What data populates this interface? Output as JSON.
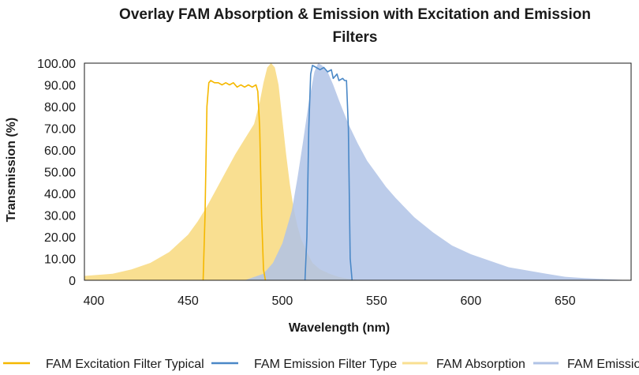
{
  "chart_data": {
    "type": "area",
    "title": "Overlay FAM Absorption & Emission with Excitation and Emission Filters",
    "xlabel": "Wavelength (nm)",
    "ylabel": "Transmission (%)",
    "xlim": [
      395,
      685
    ],
    "ylim": [
      0,
      100
    ],
    "x_ticks": [
      400,
      450,
      500,
      550,
      600,
      650
    ],
    "y_ticks": [
      0,
      10,
      20,
      30,
      40,
      50,
      60,
      70,
      80,
      90,
      100
    ],
    "y_tick_labels": [
      "0",
      "10.00",
      "20.00",
      "30.00",
      "40.00",
      "50.00",
      "60.00",
      "70.00",
      "80.00",
      "90.00",
      "100.00"
    ],
    "grid": false,
    "legend_position": "bottom",
    "series": [
      {
        "name": "FAM Absorption",
        "style": "filled-area",
        "color": "#f9df91",
        "x": [
          395,
          410,
          420,
          430,
          440,
          450,
          455,
          460,
          465,
          470,
          475,
          480,
          485,
          488,
          490,
          492,
          494,
          496,
          498,
          500,
          502,
          504,
          506,
          508,
          510,
          513,
          516,
          520,
          525,
          530,
          535,
          540
        ],
        "y": [
          2,
          3,
          5,
          8,
          13,
          21,
          27,
          34,
          42,
          50,
          58,
          65,
          72,
          82,
          91,
          98,
          100,
          98,
          90,
          74,
          58,
          44,
          33,
          25,
          19,
          13,
          8,
          5,
          3,
          1.5,
          0.7,
          0
        ]
      },
      {
        "name": "FAM Emission",
        "style": "filled-area",
        "color": "#b0c3e6",
        "x": [
          480,
          490,
          495,
          500,
          505,
          508,
          511,
          514,
          517,
          519,
          521,
          524,
          527,
          530,
          535,
          540,
          545,
          550,
          555,
          560,
          570,
          580,
          590,
          600,
          620,
          640,
          650,
          660,
          670,
          685
        ],
        "y": [
          0,
          3,
          8,
          17,
          32,
          47,
          64,
          82,
          96,
          100,
          99,
          96,
          90,
          83,
          72,
          63,
          55,
          49,
          43,
          38,
          29,
          22,
          16,
          12,
          6,
          3,
          1.6,
          1,
          0.6,
          0
        ]
      },
      {
        "name": "FAM Excitation Filter Typical",
        "style": "line",
        "color": "#f5b800",
        "x": [
          458,
          459,
          460,
          461,
          462,
          464,
          466,
          468,
          470,
          472,
          474,
          476,
          478,
          480,
          482,
          484,
          486,
          487,
          488,
          489,
          490,
          491
        ],
        "y": [
          0,
          30,
          80,
          91,
          92,
          91,
          91,
          90,
          91,
          90,
          91,
          89,
          90,
          89,
          90,
          89,
          90,
          87,
          70,
          30,
          5,
          0
        ]
      },
      {
        "name": "FAM Emission Filter Type",
        "style": "line",
        "color": "#4a88c7",
        "x": [
          512,
          513,
          514,
          515,
          516,
          518,
          520,
          522,
          524,
          526,
          527,
          529,
          530,
          532,
          533,
          534,
          535,
          536,
          537
        ],
        "y": [
          0,
          20,
          70,
          95,
          99,
          98,
          97,
          98,
          96,
          97,
          93,
          95,
          92,
          93,
          92,
          92,
          70,
          10,
          0
        ]
      }
    ]
  }
}
